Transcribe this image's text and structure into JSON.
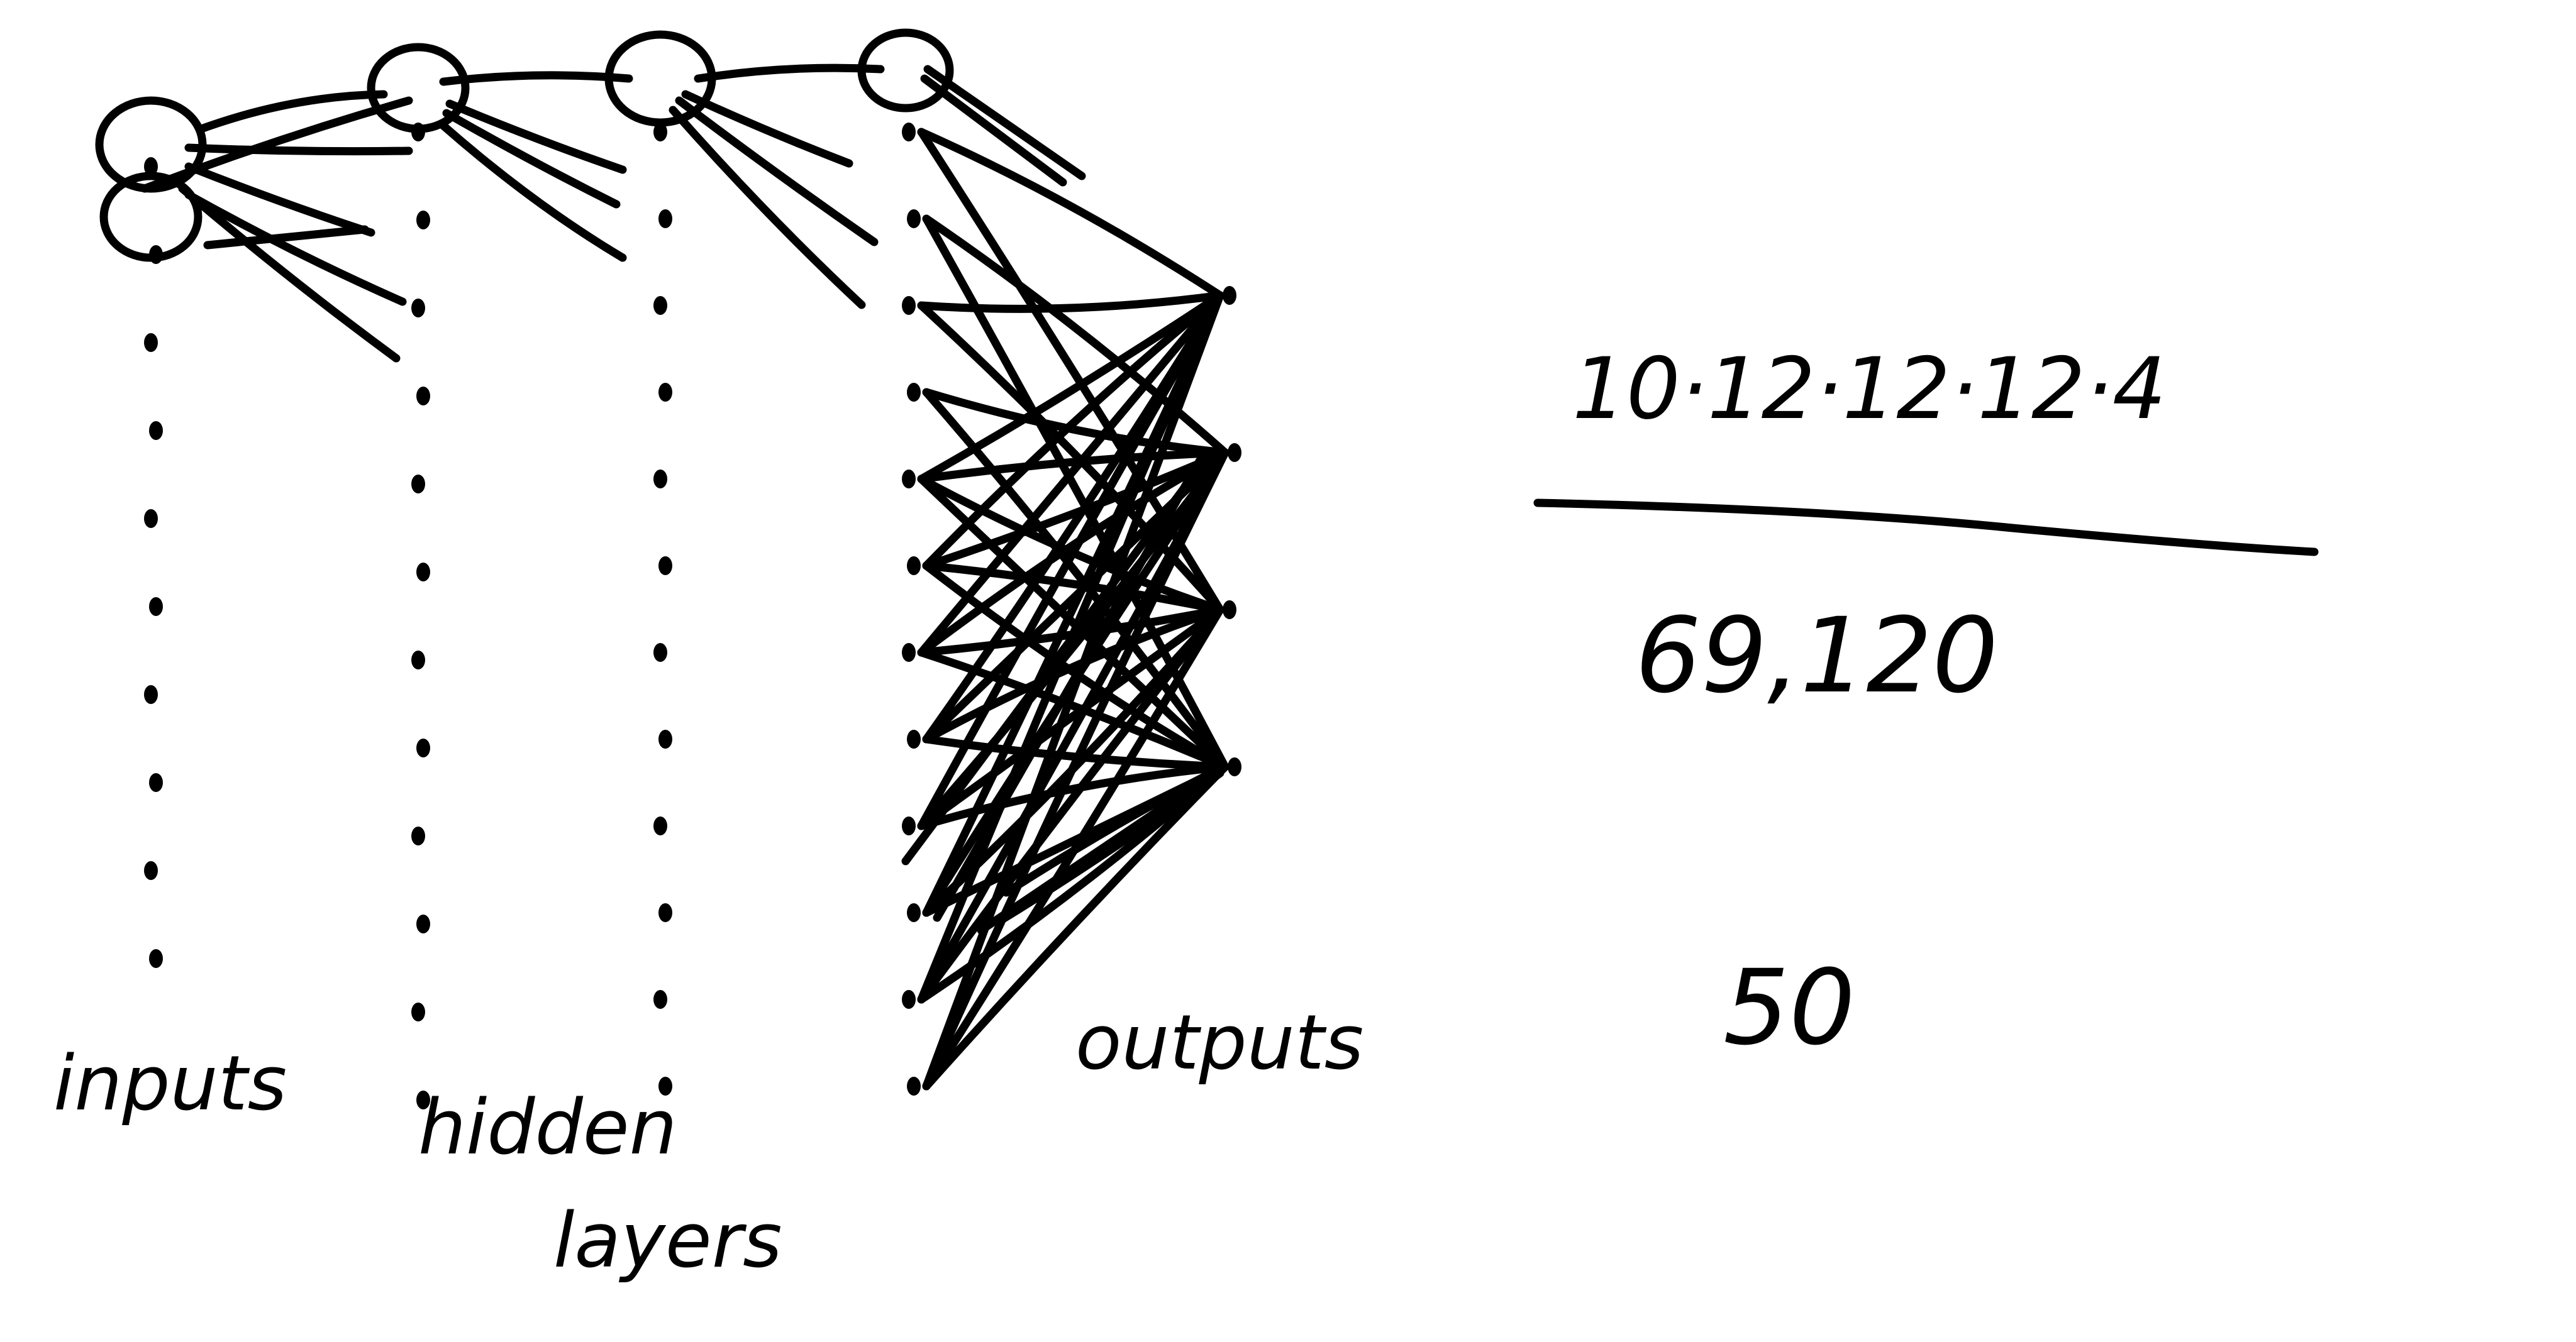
{
  "diagram": {
    "ink_color": "#000000",
    "background": "#ffffff",
    "labels": {
      "inputs": "inputs",
      "hidden_line1": "hidden",
      "hidden_line2": "layers",
      "outputs": "outputs"
    },
    "equation": {
      "numerator": "10·12·12·12·4",
      "denominator": "69,120",
      "below": "50"
    },
    "columns": [
      {
        "name": "inputs",
        "nodes": 10
      },
      {
        "name": "hidden-1",
        "nodes": 12
      },
      {
        "name": "hidden-2",
        "nodes": 12
      },
      {
        "name": "hidden-3",
        "nodes": 12
      },
      {
        "name": "outputs",
        "nodes": 4
      }
    ]
  }
}
